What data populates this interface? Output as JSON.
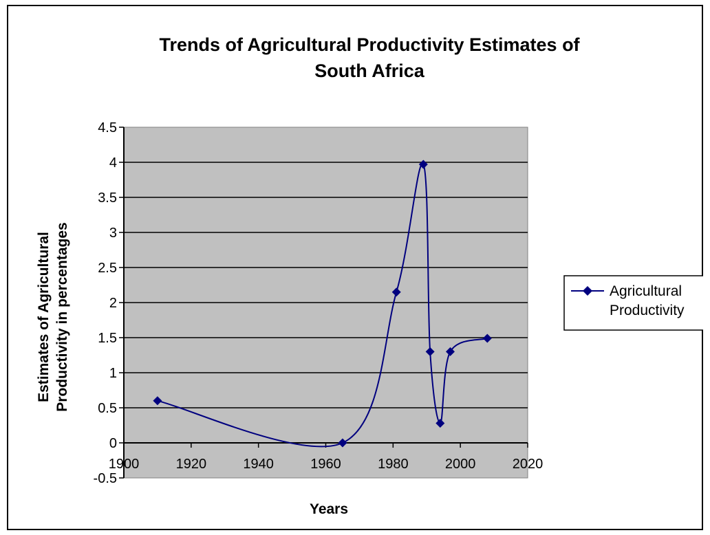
{
  "chart_data": {
    "type": "line",
    "title_lines": [
      "Trends of Agricultural Productivity Estimates  of",
      "South Africa"
    ],
    "xlabel": "Years",
    "ylabel_lines": [
      "Estimates of Agricultural",
      "Productivity in percentages"
    ],
    "xlim": [
      1900,
      2020
    ],
    "ylim": [
      -0.5,
      4.5
    ],
    "x_ticks": [
      "1900",
      "1920",
      "1940",
      "1960",
      "1980",
      "2000",
      "2020"
    ],
    "y_ticks": [
      "4.5",
      "4",
      "3.5",
      "3",
      "2.5",
      "2",
      "1.5",
      "1",
      "0.5",
      "0",
      "-0.5"
    ],
    "grid": true,
    "smooth": true,
    "legend_position": "right",
    "series": [
      {
        "name_lines": [
          "Agricultural",
          "Productivity"
        ],
        "color": "#00007f",
        "marker": "diamond",
        "x": [
          1910,
          1965,
          1981,
          1989,
          1991,
          1994,
          1997,
          2008
        ],
        "y": [
          0.6,
          0.0,
          2.15,
          3.97,
          1.3,
          0.28,
          1.3,
          1.49
        ]
      }
    ],
    "plot_background": "#c0c0c0"
  }
}
